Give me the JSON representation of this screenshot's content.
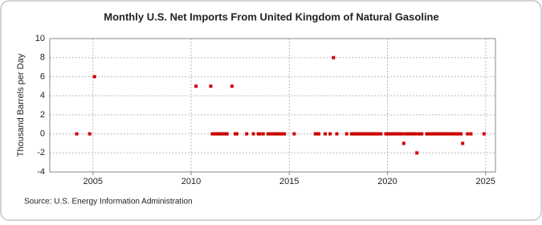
{
  "chart_data": {
    "type": "scatter",
    "title": "Monthly U.S. Net Imports From United Kingdom of Natural Gasoline",
    "y_label": "Thousand Barrels per Day",
    "source": "Source: U.S. Energy Information Administration",
    "color": "#cc0000",
    "grid": true,
    "xlim": [
      2002.8,
      2025.5
    ],
    "xticks": [
      2005,
      2010,
      2015,
      2020,
      2025
    ],
    "ylim": [
      -4,
      10
    ],
    "yticks": [
      -4,
      -2,
      0,
      2,
      4,
      6,
      8,
      10
    ],
    "x": [
      2004.17,
      2004.83,
      2005.08,
      2010.25,
      2011.0,
      2011.08,
      2011.17,
      2011.25,
      2011.33,
      2011.42,
      2011.5,
      2011.58,
      2011.67,
      2011.75,
      2011.83,
      2012.08,
      2012.25,
      2012.33,
      2012.83,
      2013.17,
      2013.42,
      2013.5,
      2013.67,
      2013.92,
      2014.0,
      2014.08,
      2014.17,
      2014.25,
      2014.33,
      2014.42,
      2014.5,
      2014.58,
      2014.67,
      2014.75,
      2015.25,
      2016.33,
      2016.42,
      2016.5,
      2016.83,
      2017.08,
      2017.25,
      2017.42,
      2017.92,
      2018.17,
      2018.25,
      2018.33,
      2018.42,
      2018.5,
      2018.58,
      2018.67,
      2018.75,
      2018.83,
      2018.92,
      2019.0,
      2019.08,
      2019.17,
      2019.25,
      2019.33,
      2019.42,
      2019.5,
      2019.58,
      2019.67,
      2019.92,
      2020.0,
      2020.08,
      2020.17,
      2020.25,
      2020.33,
      2020.42,
      2020.5,
      2020.58,
      2020.67,
      2020.75,
      2020.83,
      2020.92,
      2021.0,
      2021.08,
      2021.17,
      2021.25,
      2021.33,
      2021.42,
      2021.5,
      2021.58,
      2021.67,
      2021.75,
      2022.0,
      2022.08,
      2022.17,
      2022.25,
      2022.33,
      2022.42,
      2022.5,
      2022.58,
      2022.67,
      2022.75,
      2022.83,
      2022.92,
      2023.0,
      2023.08,
      2023.17,
      2023.25,
      2023.33,
      2023.42,
      2023.5,
      2023.58,
      2023.67,
      2023.75,
      2023.83,
      2024.08,
      2024.25,
      2024.92
    ],
    "values": [
      0,
      0,
      6,
      5,
      5,
      0,
      0,
      0,
      0,
      0,
      0,
      0,
      0,
      0,
      0,
      5,
      0,
      0,
      0,
      0,
      0,
      0,
      0,
      0,
      0,
      0,
      0,
      0,
      0,
      0,
      0,
      0,
      0,
      0,
      0,
      0,
      0,
      0,
      0,
      0,
      8,
      0,
      0,
      0,
      0,
      0,
      0,
      0,
      0,
      0,
      0,
      0,
      0,
      0,
      0,
      0,
      0,
      0,
      0,
      0,
      0,
      0,
      0,
      0,
      0,
      0,
      0,
      0,
      0,
      0,
      0,
      0,
      0,
      -1,
      0,
      0,
      0,
      0,
      0,
      0,
      0,
      -2,
      0,
      0,
      0,
      0,
      0,
      0,
      0,
      0,
      0,
      0,
      0,
      0,
      0,
      0,
      0,
      0,
      0,
      0,
      0,
      0,
      0,
      0,
      0,
      0,
      0,
      -1,
      0,
      0,
      0
    ]
  }
}
